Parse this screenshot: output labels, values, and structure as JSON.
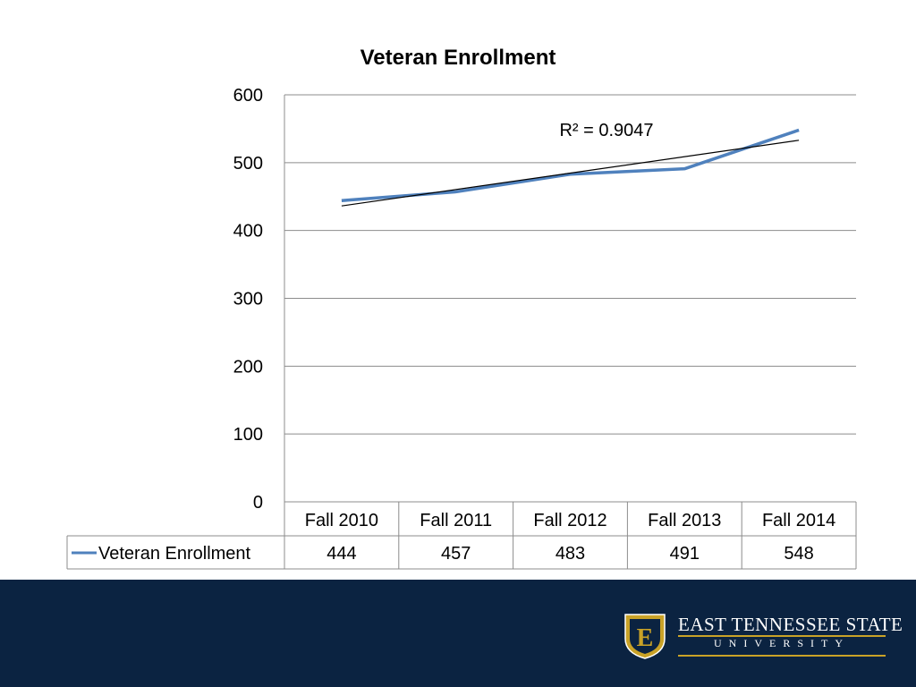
{
  "chart_data": {
    "type": "line",
    "title": "Veteran Enrollment",
    "categories": [
      "Fall 2010",
      "Fall 2011",
      "Fall 2012",
      "Fall 2013",
      "Fall 2014"
    ],
    "series": [
      {
        "name": "Veteran Enrollment",
        "values": [
          444,
          457,
          483,
          491,
          548
        ],
        "color": "#4f81bd"
      }
    ],
    "trendline": {
      "type": "linear",
      "r_squared_label": "R² = 0.9047",
      "color": "#000000"
    },
    "ylim": [
      0,
      600
    ],
    "yticks": [
      "600",
      "500",
      "400",
      "300",
      "200",
      "100",
      "0"
    ],
    "grid": true,
    "data_table": true
  },
  "branding": {
    "line1": "EAST TENNESSEE STATE",
    "line2": "UNIVERSITY",
    "shield_letter": "E",
    "band_color": "#0b2341",
    "accent_color": "#c9a227"
  }
}
